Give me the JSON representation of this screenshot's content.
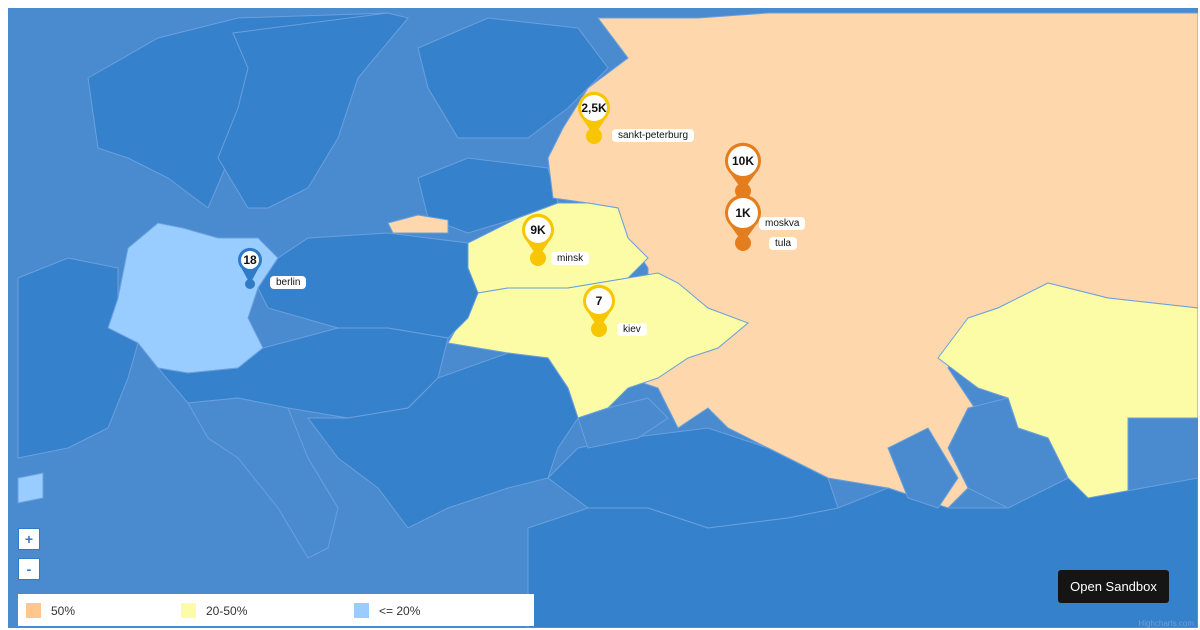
{
  "map": {
    "zoom_in_label": "+",
    "zoom_out_label": "-",
    "colors": {
      "ocean_land_low": "#3581cc",
      "ocean": "#4a8bd0",
      "high": "#fed7ac",
      "mid": "#fbfca5",
      "low": "#99ccff",
      "marker_mid": "#f7c600",
      "marker_high": "#e37d1e",
      "marker_low": "#2f7bc8"
    },
    "markers": [
      {
        "city": "sankt-peterburg",
        "value": "2,5K",
        "level": "mid"
      },
      {
        "city": "moskva",
        "value": "10K",
        "level": "high"
      },
      {
        "city": "tula",
        "value": "1K",
        "level": "high"
      },
      {
        "city": "minsk",
        "value": "9K",
        "level": "mid"
      },
      {
        "city": "berlin",
        "value": "18",
        "level": "low"
      },
      {
        "city": "kiev",
        "value": "7",
        "level": "mid"
      }
    ]
  },
  "legend": {
    "items": [
      {
        "label": "50%",
        "color": "#ffc78e"
      },
      {
        "label": "20-50%",
        "color": "#fbfca5"
      },
      {
        "label": "<= 20%",
        "color": "#99ccff"
      }
    ]
  },
  "sandbox_button": "Open Sandbox",
  "credits": "Highcharts.com"
}
